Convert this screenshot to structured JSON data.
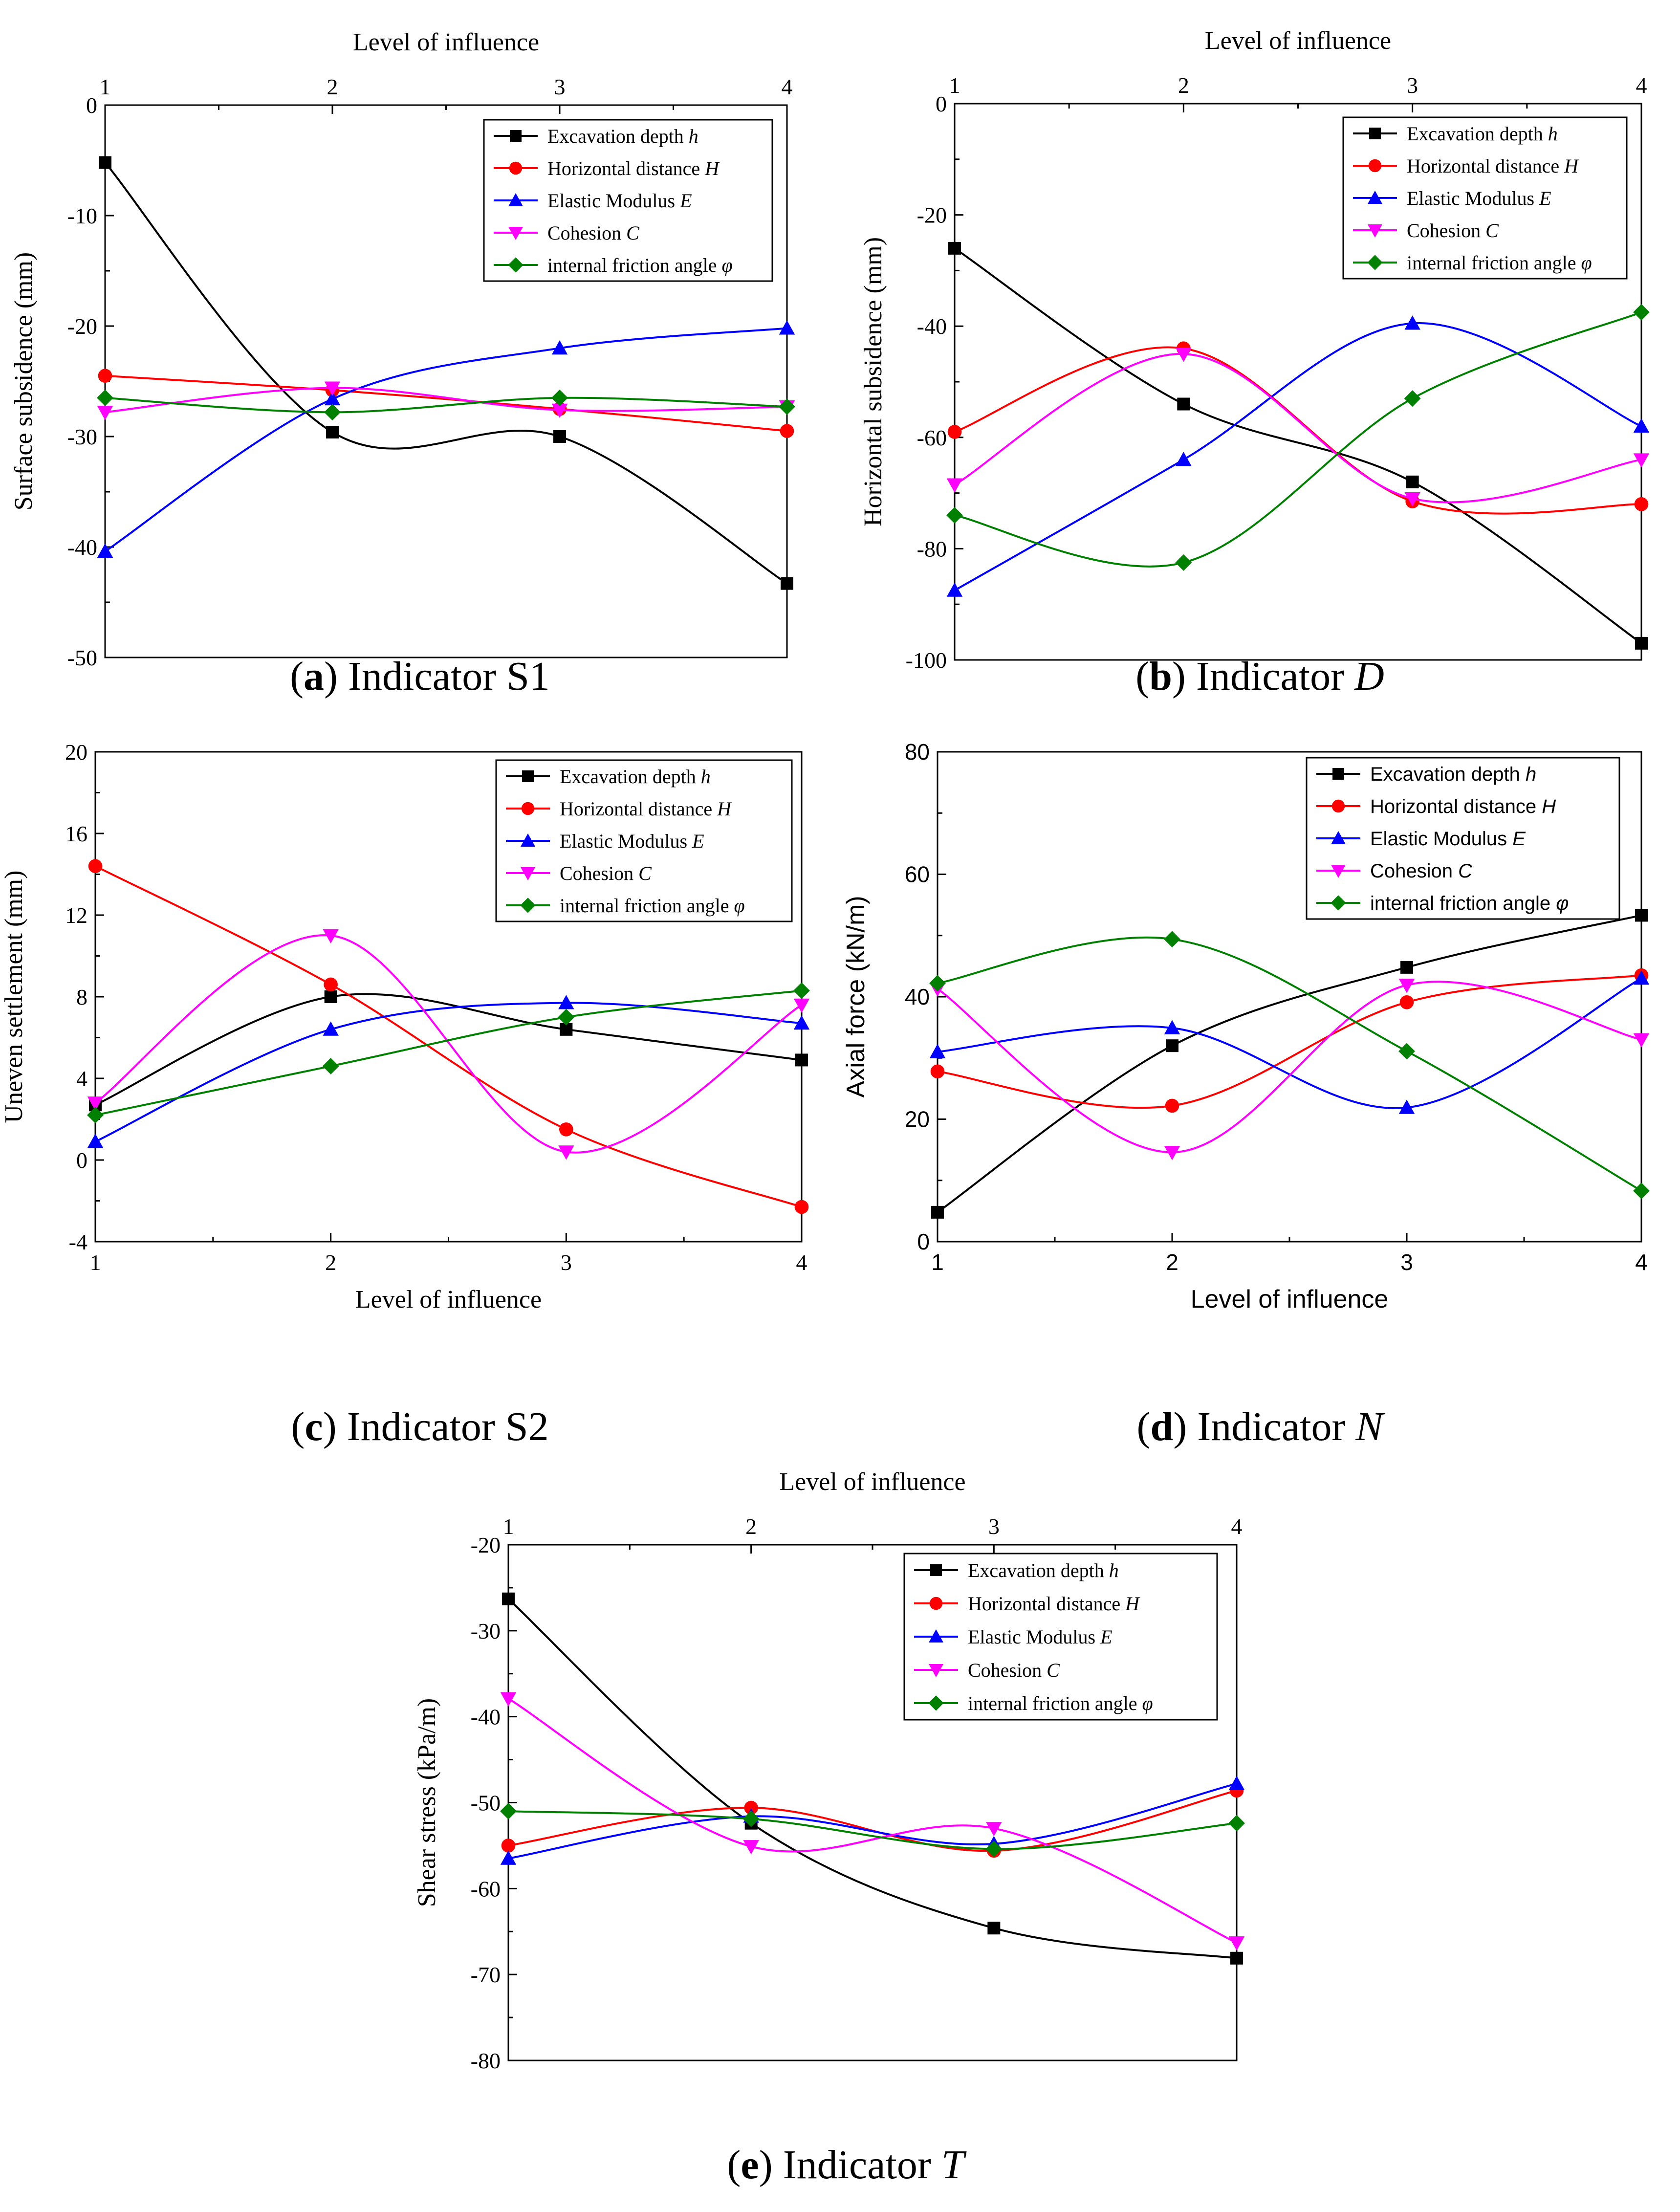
{
  "chart_data": [
    {
      "id": "a",
      "type": "line",
      "caption": {
        "letter": "a",
        "text": "Indicator S1",
        "italic": false
      },
      "font": "serif",
      "xaxis_position": "top",
      "xlabel": "Level of influence",
      "ylabel": "Surface subsidence (mm)",
      "x": [
        1,
        2,
        3,
        4
      ],
      "xlim": [
        1,
        4
      ],
      "xticks": [
        "1",
        "2",
        "3",
        "4"
      ],
      "ylim": [
        -50,
        0
      ],
      "yticks": [
        -50,
        -40,
        -30,
        -20,
        -10,
        0
      ],
      "ytick_labels": [
        "-50",
        "-40",
        "-30",
        "-20",
        "-10",
        "0"
      ],
      "series": [
        {
          "name": "Excavation depth",
          "var": "h",
          "color": "#000000",
          "marker": "square",
          "values": [
            -5.2,
            -29.6,
            -30.0,
            -43.3
          ]
        },
        {
          "name": "Horizontal distance",
          "var": "H",
          "color": "#ff0000",
          "marker": "circle",
          "values": [
            -24.5,
            -25.8,
            -27.5,
            -29.5
          ]
        },
        {
          "name": "Elastic Modulus",
          "var": "E",
          "color": "#0000ff",
          "marker": "triangle-up",
          "values": [
            -40.4,
            -26.6,
            -22.0,
            -20.2
          ]
        },
        {
          "name": "Cohesion",
          "var": "C",
          "color": "#ff00ff",
          "marker": "triangle-down",
          "values": [
            -27.8,
            -25.6,
            -27.6,
            -27.3
          ]
        },
        {
          "name": "internal friction angle",
          "var": "φ",
          "color": "#008000",
          "marker": "diamond",
          "values": [
            -26.5,
            -27.8,
            -26.5,
            -27.3
          ]
        }
      ]
    },
    {
      "id": "b",
      "type": "line",
      "caption": {
        "letter": "b",
        "text": "Indicator ",
        "var": "D"
      },
      "font": "serif",
      "xaxis_position": "top",
      "xlabel": "Level of influence",
      "ylabel": "Horizontal subsidence (mm)",
      "x": [
        1,
        2,
        3,
        4
      ],
      "xlim": [
        1,
        4
      ],
      "xticks": [
        "1",
        "2",
        "3",
        "4"
      ],
      "ylim": [
        -100,
        0
      ],
      "yticks": [
        -100,
        -80,
        -60,
        -40,
        -20,
        0
      ],
      "ytick_labels": [
        "-100",
        "-80",
        "-60",
        "-40",
        "-20",
        "0"
      ],
      "series": [
        {
          "name": "Excavation depth",
          "var": "h",
          "color": "#000000",
          "marker": "square",
          "values": [
            -26.0,
            -54.0,
            -68.0,
            -97.0
          ]
        },
        {
          "name": "Horizontal distance",
          "var": "H",
          "color": "#ff0000",
          "marker": "circle",
          "values": [
            -59.0,
            -44.0,
            -71.5,
            -72.0
          ]
        },
        {
          "name": "Elastic Modulus",
          "var": "E",
          "color": "#0000ff",
          "marker": "triangle-up",
          "values": [
            -87.5,
            -64.0,
            -39.5,
            -58.0
          ]
        },
        {
          "name": "Cohesion",
          "var": "C",
          "color": "#ff00ff",
          "marker": "triangle-down",
          "values": [
            -68.5,
            -45.0,
            -71.0,
            -64.0
          ]
        },
        {
          "name": "internal friction angle",
          "var": "φ",
          "color": "#008000",
          "marker": "diamond",
          "values": [
            -74.0,
            -82.5,
            -53.0,
            -37.5
          ]
        }
      ]
    },
    {
      "id": "c",
      "type": "line",
      "caption": {
        "letter": "c",
        "text": "Indicator S2",
        "italic": false
      },
      "font": "serif",
      "xaxis_position": "bottom",
      "xlabel": "Level of influence",
      "ylabel": "Uneven settlement (mm)",
      "x": [
        1,
        2,
        3,
        4
      ],
      "xlim": [
        1,
        4
      ],
      "xticks": [
        "1",
        "2",
        "3",
        "4"
      ],
      "ylim": [
        -4,
        20
      ],
      "yticks": [
        -4,
        0,
        4,
        8,
        12,
        16,
        20
      ],
      "ytick_labels": [
        "-4",
        "0",
        "4",
        "8",
        "12",
        "16",
        "20"
      ],
      "series": [
        {
          "name": "Excavation depth",
          "var": "h",
          "color": "#000000",
          "marker": "square",
          "values": [
            2.7,
            8.0,
            6.4,
            4.9
          ]
        },
        {
          "name": "Horizontal distance",
          "var": "H",
          "color": "#ff0000",
          "marker": "circle",
          "values": [
            14.4,
            8.6,
            1.5,
            -2.3
          ]
        },
        {
          "name": "Elastic Modulus",
          "var": "E",
          "color": "#0000ff",
          "marker": "triangle-up",
          "values": [
            0.9,
            6.4,
            7.7,
            6.7
          ]
        },
        {
          "name": "Cohesion",
          "var": "C",
          "color": "#ff00ff",
          "marker": "triangle-down",
          "values": [
            2.8,
            11.0,
            0.4,
            7.6
          ]
        },
        {
          "name": "internal friction angle",
          "var": "φ",
          "color": "#008000",
          "marker": "diamond",
          "values": [
            2.2,
            4.6,
            7.0,
            8.3
          ]
        }
      ]
    },
    {
      "id": "d",
      "type": "line",
      "caption": {
        "letter": "d",
        "text": "Indicator ",
        "var": "N"
      },
      "font": "sans",
      "xaxis_position": "bottom",
      "xlabel": "Level of influence",
      "ylabel": "Axial force (kN/m)",
      "x": [
        1,
        2,
        3,
        4
      ],
      "xlim": [
        1,
        4
      ],
      "xticks": [
        "1",
        "2",
        "3",
        "4"
      ],
      "ylim": [
        0,
        80
      ],
      "yticks": [
        0,
        20,
        40,
        60,
        80
      ],
      "ytick_labels": [
        "0",
        "20",
        "40",
        "60",
        "80"
      ],
      "series": [
        {
          "name": "Excavation depth",
          "var": "h",
          "color": "#000000",
          "marker": "square",
          "values": [
            4.8,
            32.0,
            44.8,
            53.3
          ]
        },
        {
          "name": "Horizontal distance",
          "var": "H",
          "color": "#ff0000",
          "marker": "circle",
          "values": [
            27.8,
            22.2,
            39.1,
            43.5
          ]
        },
        {
          "name": "Elastic Modulus",
          "var": "E",
          "color": "#0000ff",
          "marker": "triangle-up",
          "values": [
            31.0,
            34.9,
            21.9,
            43.0
          ]
        },
        {
          "name": "Cohesion",
          "var": "C",
          "color": "#ff00ff",
          "marker": "triangle-down",
          "values": [
            41.3,
            14.6,
            41.9,
            33.0
          ]
        },
        {
          "name": "internal friction angle",
          "var": "φ",
          "color": "#008000",
          "marker": "diamond",
          "values": [
            42.2,
            49.4,
            31.1,
            8.3
          ]
        }
      ]
    },
    {
      "id": "e",
      "type": "line",
      "caption": {
        "letter": "e",
        "text": "Indicator ",
        "var": "T"
      },
      "font": "serif",
      "xaxis_position": "top",
      "xlabel": "Level of influence",
      "ylabel": "Shear stress (kPa/m)",
      "x": [
        1,
        2,
        3,
        4
      ],
      "xlim": [
        1,
        4
      ],
      "xticks": [
        "1",
        "2",
        "3",
        "4"
      ],
      "ylim": [
        -80,
        -20
      ],
      "yticks": [
        -80,
        -70,
        -60,
        -50,
        -40,
        -30,
        -20
      ],
      "ytick_labels": [
        "-80",
        "-70",
        "-60",
        "-50",
        "-40",
        "-30",
        "-20"
      ],
      "series": [
        {
          "name": "Excavation depth",
          "var": "h",
          "color": "#000000",
          "marker": "square",
          "values": [
            -26.3,
            -52.4,
            -64.6,
            -68.1
          ]
        },
        {
          "name": "Horizontal distance",
          "var": "H",
          "color": "#ff0000",
          "marker": "circle",
          "values": [
            -55.0,
            -50.6,
            -55.6,
            -48.6
          ]
        },
        {
          "name": "Elastic Modulus",
          "var": "E",
          "color": "#0000ff",
          "marker": "triangle-up",
          "values": [
            -56.5,
            -51.6,
            -54.8,
            -47.8
          ]
        },
        {
          "name": "Cohesion",
          "var": "C",
          "color": "#ff00ff",
          "marker": "triangle-down",
          "values": [
            -37.9,
            -55.1,
            -53.0,
            -66.3
          ]
        },
        {
          "name": "internal friction angle",
          "var": "φ",
          "color": "#008000",
          "marker": "diamond",
          "values": [
            -51.0,
            -51.9,
            -55.4,
            -52.4
          ]
        }
      ]
    }
  ]
}
